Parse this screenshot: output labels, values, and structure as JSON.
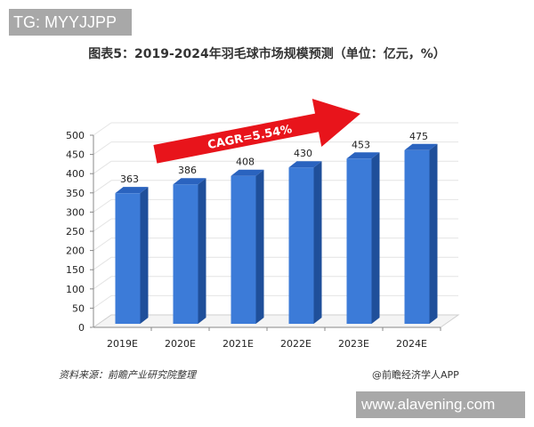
{
  "watermark_top": "TG: MYYJJPP",
  "watermark_bottom": "www.alavening.com",
  "footer": {
    "source": "资料来源：前瞻产业研究院整理",
    "brand": "@前瞻经济学人APP"
  },
  "colors": {
    "bar_front": "#3c7bd8",
    "bar_side": "#1f4f9a",
    "bar_top": "#2a63bf",
    "arrow": "#e8141b"
  },
  "chart_data": {
    "type": "bar",
    "title": "图表5：2019-2024年羽毛球市场规模预测（单位：亿元，%）",
    "categories": [
      "2019E",
      "2020E",
      "2021E",
      "2022E",
      "2023E",
      "2024E"
    ],
    "values": [
      363,
      386,
      408,
      430,
      453,
      475
    ],
    "xlabel": "",
    "ylabel": "",
    "ylim": [
      0,
      500
    ],
    "yticks": [
      0,
      50,
      100,
      150,
      200,
      250,
      300,
      350,
      400,
      450,
      500
    ],
    "grid": true,
    "legend": null,
    "annotations": [
      {
        "text": "CAGR=5.54%",
        "type": "arrow"
      }
    ],
    "style": "3d-column"
  }
}
